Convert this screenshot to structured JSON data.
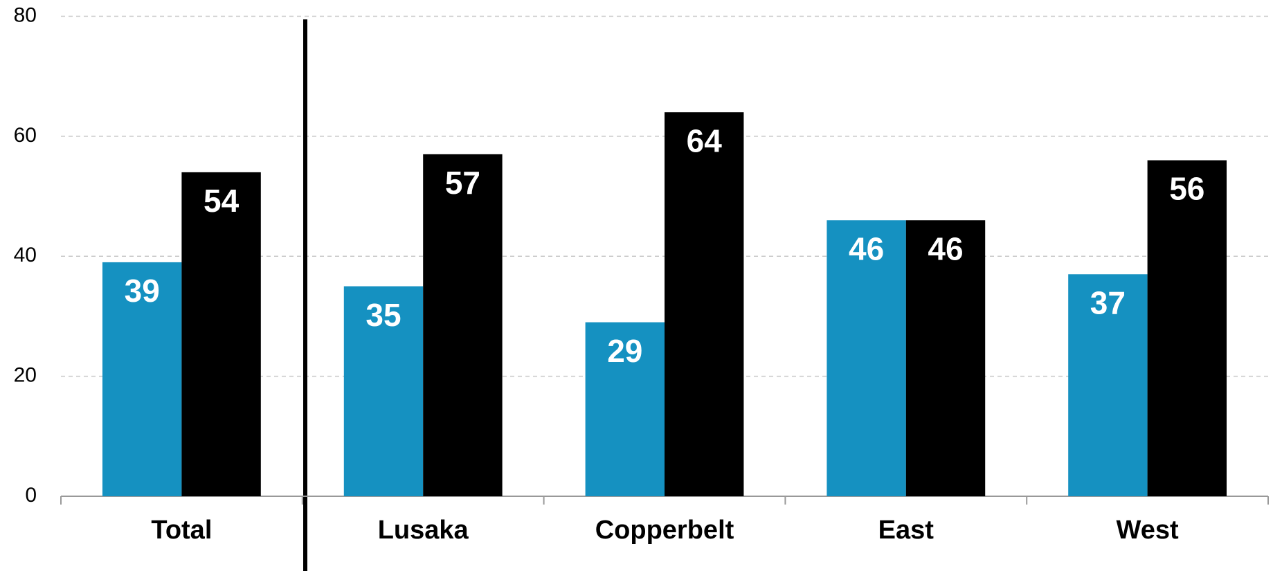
{
  "chart_data": {
    "type": "bar",
    "categories": [
      "Total",
      "Lusaka",
      "Copperbelt",
      "East",
      "West"
    ],
    "series": [
      {
        "color": "#1591c1",
        "values": [
          39,
          35,
          29,
          46,
          37
        ]
      },
      {
        "color": "#000000",
        "values": [
          54,
          57,
          64,
          46,
          56
        ]
      }
    ],
    "ylim": [
      0,
      80
    ],
    "yticks": [
      0,
      20,
      40,
      60,
      80
    ],
    "grid": true
  }
}
